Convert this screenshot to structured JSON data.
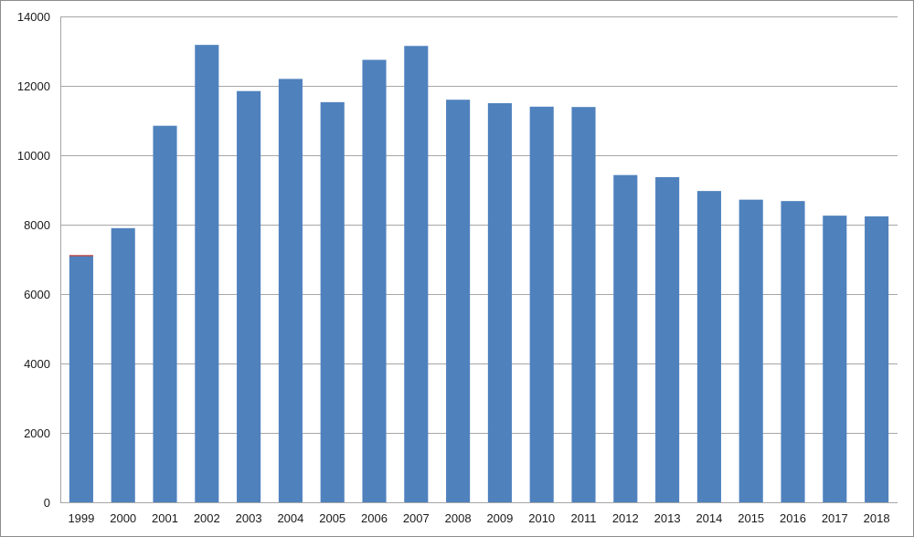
{
  "chart_data": {
    "type": "bar",
    "title": "",
    "xlabel": "",
    "ylabel": "",
    "categories": [
      "1999",
      "2000",
      "2001",
      "2002",
      "2003",
      "2004",
      "2005",
      "2006",
      "2007",
      "2008",
      "2009",
      "2010",
      "2011",
      "2012",
      "2013",
      "2014",
      "2015",
      "2016",
      "2017",
      "2018"
    ],
    "values": [
      7100,
      7900,
      10850,
      13180,
      11850,
      12200,
      11530,
      12750,
      13150,
      11600,
      11500,
      11400,
      11390,
      9430,
      9370,
      8970,
      8720,
      8680,
      8260,
      8240
    ],
    "ylim": [
      0,
      14000
    ],
    "yticks": [
      0,
      2000,
      4000,
      6000,
      8000,
      10000,
      12000,
      14000
    ],
    "grid": true,
    "legend": "none",
    "colors": {
      "bar": "#4f81bd",
      "bar_accent_first": "#c0504d",
      "grid": "#a6a6a6",
      "axis": "#a6a6a6",
      "text": "#1a1a1a"
    }
  }
}
